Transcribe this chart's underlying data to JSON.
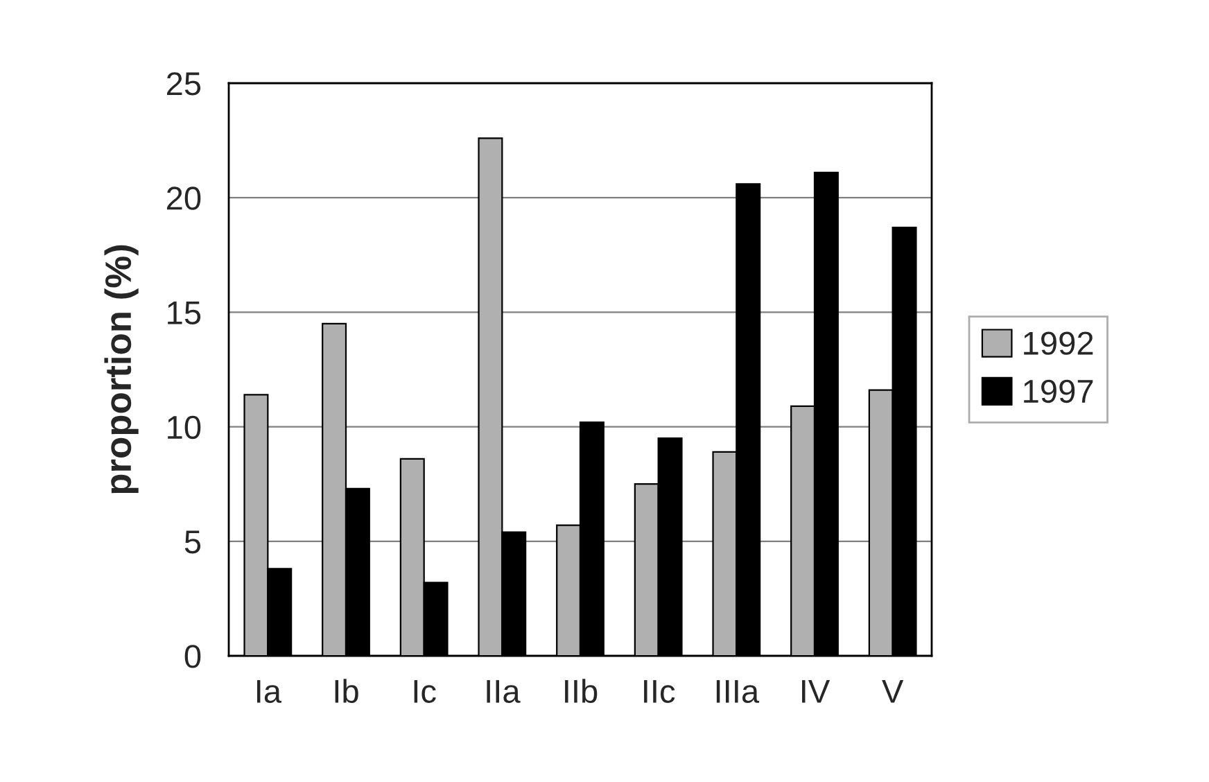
{
  "chart_data": {
    "type": "bar",
    "ylabel": "proportion (%)",
    "categories": [
      "Ia",
      "Ib",
      "Ic",
      "IIa",
      "IIb",
      "IIc",
      "IIIa",
      "IV",
      "V"
    ],
    "series": [
      {
        "name": "1992",
        "color": "#b0b0b0",
        "values": [
          11.4,
          14.5,
          8.6,
          22.6,
          5.7,
          7.5,
          8.9,
          10.9,
          11.6
        ]
      },
      {
        "name": "1997",
        "color": "#000000",
        "values": [
          3.8,
          7.3,
          3.2,
          5.4,
          10.2,
          9.5,
          20.6,
          21.1,
          18.7
        ]
      }
    ],
    "ylim": [
      0,
      25
    ],
    "yticks": [
      0,
      5,
      10,
      15,
      20,
      25
    ],
    "grid": "y",
    "legend": "right"
  }
}
